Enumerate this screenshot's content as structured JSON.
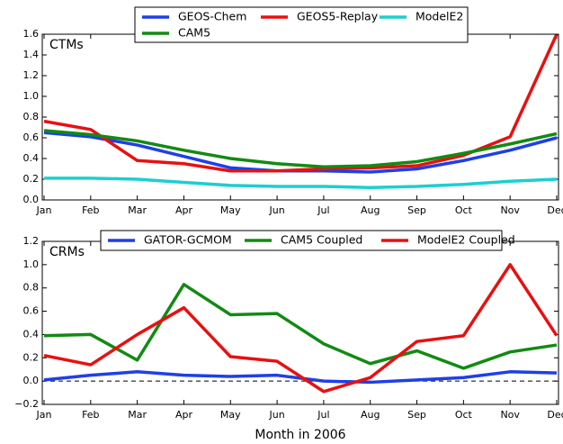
{
  "chart_data": [
    {
      "type": "line",
      "annotation": "CTMs",
      "categories": [
        "Jan",
        "Feb",
        "Mar",
        "Apr",
        "May",
        "Jun",
        "Jul",
        "Aug",
        "Sep",
        "Oct",
        "Nov",
        "Dec"
      ],
      "series": [
        {
          "name": "GEOS-Chem",
          "color": "#1f3fe6",
          "values": [
            0.65,
            0.61,
            0.53,
            0.42,
            0.31,
            0.28,
            0.28,
            0.27,
            0.3,
            0.38,
            0.48,
            0.6
          ]
        },
        {
          "name": "GEOS5-Replay",
          "color": "#e81010",
          "values": [
            0.76,
            0.68,
            0.38,
            0.35,
            0.28,
            0.28,
            0.3,
            0.31,
            0.33,
            0.43,
            0.61,
            1.6
          ]
        },
        {
          "name": "ModelE2",
          "color": "#1ccfcf",
          "values": [
            0.21,
            0.21,
            0.2,
            0.17,
            0.14,
            0.13,
            0.13,
            0.12,
            0.13,
            0.15,
            0.18,
            0.2
          ]
        },
        {
          "name": "CAM5",
          "color": "#138a13",
          "values": [
            0.67,
            0.63,
            0.57,
            0.48,
            0.4,
            0.35,
            0.32,
            0.33,
            0.37,
            0.45,
            0.54,
            0.64
          ]
        }
      ],
      "ylim": [
        0,
        1.6
      ],
      "yticks": [
        {
          "value": 0,
          "label": "0.0"
        },
        0.2,
        0.4,
        0.6,
        0.8,
        {
          "value": 1,
          "label": "1.0"
        },
        1.2,
        1.4,
        1.6
      ],
      "legend": "upper center"
    },
    {
      "type": "line",
      "annotation": "CRMs",
      "x_label": "Month in 2006",
      "categories": [
        "Jan",
        "Feb",
        "Mar",
        "Apr",
        "May",
        "Jun",
        "Jul",
        "Aug",
        "Sep",
        "Oct",
        "Nov",
        "Dec"
      ],
      "series": [
        {
          "name": "GATOR-GCMOM",
          "color": "#1f3fe6",
          "values": [
            0.01,
            0.05,
            0.08,
            0.05,
            0.04,
            0.05,
            0.0,
            -0.01,
            0.01,
            0.03,
            0.08,
            0.07
          ]
        },
        {
          "name": "CAM5 Coupled",
          "color": "#138a13",
          "values": [
            0.39,
            0.4,
            0.18,
            0.83,
            0.57,
            0.58,
            0.32,
            0.15,
            0.26,
            0.11,
            0.25,
            0.31
          ]
        },
        {
          "name": "ModelE2 Coupled",
          "color": "#e81010",
          "values": [
            0.22,
            0.14,
            0.4,
            0.63,
            0.21,
            0.17,
            -0.09,
            0.03,
            0.34,
            0.39,
            1.0,
            0.39
          ]
        }
      ],
      "ylim": [
        -0.2,
        1.2
      ],
      "yticks": [
        {
          "value": -0.2,
          "label": "−0.2"
        },
        {
          "value": 0,
          "label": "0.0"
        },
        0.2,
        0.4,
        0.6,
        0.8,
        {
          "value": 1,
          "label": "1.0"
        },
        1.2
      ],
      "reference_line": 0,
      "legend": "upper center"
    }
  ]
}
